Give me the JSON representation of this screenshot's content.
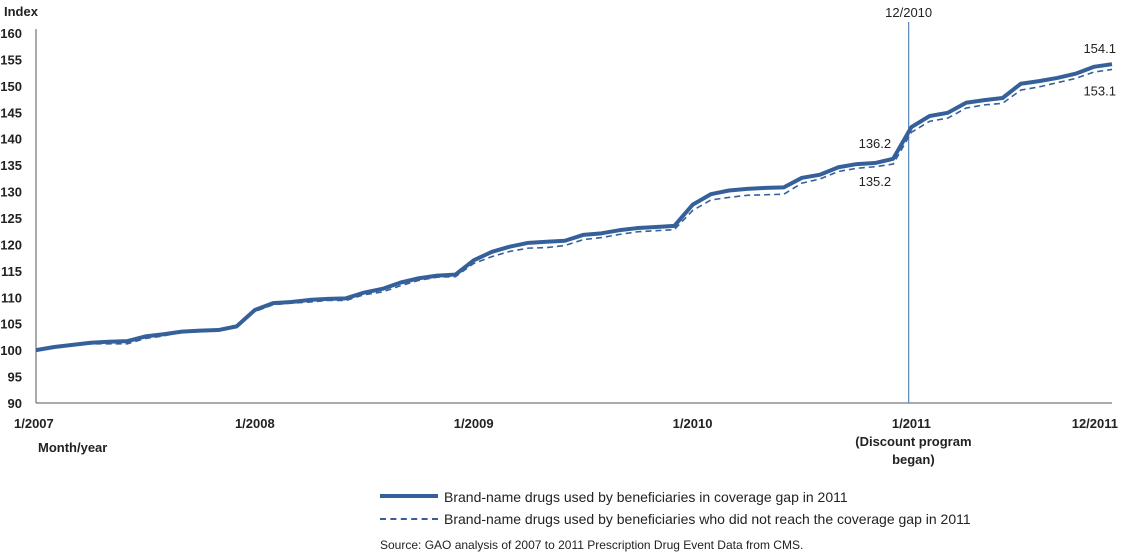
{
  "chart_data": {
    "type": "line",
    "ylabel": "Index",
    "xlabel": "Month/year",
    "ylim": [
      90,
      160
    ],
    "yticks": [
      90,
      95,
      100,
      105,
      110,
      115,
      120,
      125,
      130,
      135,
      140,
      145,
      150,
      155,
      160
    ],
    "xlim": [
      1,
      60
    ],
    "xticks": [
      {
        "x": 1,
        "label": "1/2007"
      },
      {
        "x": 13,
        "label": "1/2008"
      },
      {
        "x": 25,
        "label": "1/2009"
      },
      {
        "x": 37,
        "label": "1/2010"
      },
      {
        "x": 49,
        "label": "1/2011"
      },
      {
        "x": 60,
        "label": "12/2011"
      }
    ],
    "xtick_sublabels": [
      "(Discount program",
      "began)"
    ],
    "grid": false,
    "legend_position": "bottom",
    "vline": {
      "x": 48.85,
      "label": "12/2010"
    },
    "series": [
      {
        "name": "Brand-name drugs used by beneficiaries in coverage gap in 2011",
        "style": "solid",
        "color": "#35609a",
        "x": [
          1,
          2,
          3,
          4,
          5,
          6,
          7,
          8,
          9,
          10,
          11,
          12,
          13,
          14,
          15,
          16,
          17,
          18,
          19,
          20,
          21,
          22,
          23,
          24,
          25,
          26,
          27,
          28,
          29,
          30,
          31,
          32,
          33,
          34,
          35,
          36,
          37,
          38,
          39,
          40,
          41,
          42,
          43,
          44,
          45,
          46,
          47,
          48,
          49,
          50,
          51,
          52,
          53,
          54,
          55,
          56,
          57,
          58,
          59,
          60
        ],
        "values": [
          100.0,
          100.6,
          101.0,
          101.4,
          101.6,
          101.7,
          102.6,
          103.0,
          103.5,
          103.7,
          103.8,
          104.5,
          107.6,
          108.9,
          109.1,
          109.5,
          109.7,
          109.8,
          110.9,
          111.6,
          112.8,
          113.6,
          114.1,
          114.3,
          117.0,
          118.6,
          119.6,
          120.3,
          120.5,
          120.7,
          121.8,
          122.1,
          122.7,
          123.1,
          123.3,
          123.5,
          127.5,
          129.5,
          130.2,
          130.5,
          130.7,
          130.8,
          132.6,
          133.2,
          134.6,
          135.2,
          135.4,
          136.2,
          142.2,
          144.3,
          144.9,
          146.8,
          147.3,
          147.7,
          150.4,
          150.9,
          151.5,
          152.3,
          153.6,
          154.1
        ]
      },
      {
        "name": "Brand-name drugs used by beneficiaries who did not reach the coverage gap in 2011",
        "style": "dashed",
        "color": "#35609a",
        "x": [
          1,
          2,
          3,
          4,
          5,
          6,
          7,
          8,
          9,
          10,
          11,
          12,
          13,
          14,
          15,
          16,
          17,
          18,
          19,
          20,
          21,
          22,
          23,
          24,
          25,
          26,
          27,
          28,
          29,
          30,
          31,
          32,
          33,
          34,
          35,
          36,
          37,
          38,
          39,
          40,
          41,
          42,
          43,
          44,
          45,
          46,
          47,
          48,
          49,
          50,
          51,
          52,
          53,
          54,
          55,
          56,
          57,
          58,
          59,
          60
        ],
        "values": [
          100.0,
          100.6,
          100.9,
          101.2,
          101.2,
          101.2,
          102.2,
          102.7,
          103.4,
          103.5,
          103.7,
          104.4,
          107.3,
          108.6,
          108.9,
          109.1,
          109.4,
          109.4,
          110.5,
          111.0,
          112.2,
          113.2,
          113.8,
          113.9,
          116.4,
          117.7,
          118.7,
          119.3,
          119.4,
          119.8,
          120.9,
          121.3,
          121.9,
          122.4,
          122.6,
          122.8,
          126.4,
          128.4,
          128.9,
          129.3,
          129.4,
          129.5,
          131.6,
          132.4,
          133.8,
          134.4,
          134.7,
          135.2,
          141.2,
          143.3,
          143.9,
          145.8,
          146.4,
          146.7,
          149.2,
          149.8,
          150.6,
          151.4,
          152.6,
          153.1
        ]
      }
    ],
    "annotations": [
      {
        "text": "136.2",
        "x": 48,
        "y": 136.2,
        "series": 0
      },
      {
        "text": "135.2",
        "x": 48,
        "y": 135.2,
        "series": 1
      },
      {
        "text": "154.1",
        "x": 60,
        "y": 154.1,
        "series": 0
      },
      {
        "text": "153.1",
        "x": 60,
        "y": 153.1,
        "series": 1
      }
    ]
  },
  "legend": {
    "items": [
      {
        "label": "Brand-name drugs used by beneficiaries in coverage gap in 2011"
      },
      {
        "label": "Brand-name drugs used by beneficiaries who did not reach the coverage gap in 2011"
      }
    ]
  },
  "source": "Source: GAO analysis of 2007 to 2011 Prescription Drug Event Data from CMS."
}
